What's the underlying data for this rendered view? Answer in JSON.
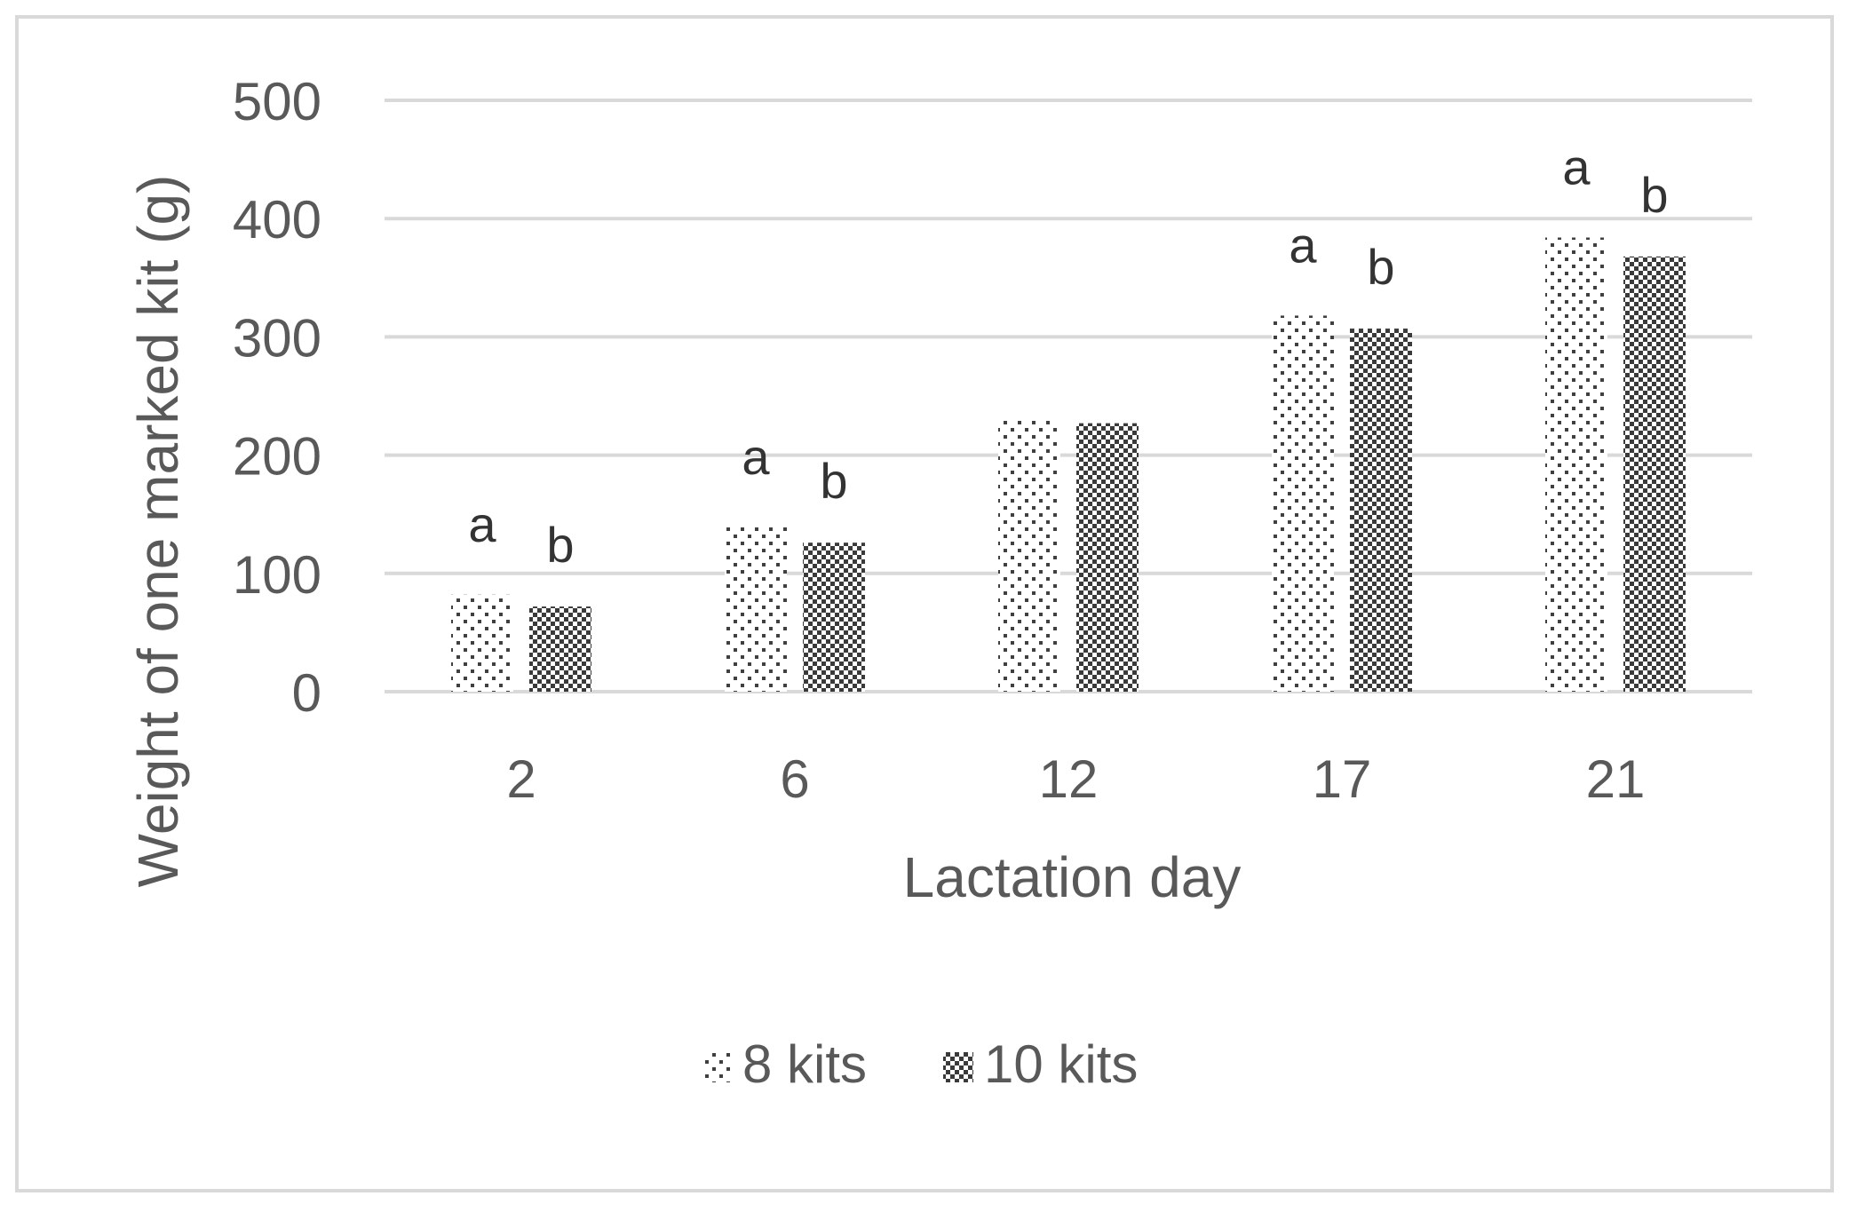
{
  "chart_data": {
    "type": "bar",
    "title": "",
    "xlabel": "Lactation day",
    "ylabel": "Weight of one marked kit (g)",
    "categories": [
      "2",
      "6",
      "12",
      "17",
      "21"
    ],
    "ylim": [
      0,
      500
    ],
    "yticks": [
      "0",
      "100",
      "200",
      "300",
      "400",
      "500"
    ],
    "grid": true,
    "legend_position": "bottom",
    "series": [
      {
        "name": "8 kits",
        "values": [
          82,
          139,
          231,
          318,
          384
        ],
        "pattern": "dots",
        "color": "#595959",
        "annotations": [
          "a",
          "a",
          "",
          "a",
          "a"
        ]
      },
      {
        "name": "10 kits",
        "values": [
          72,
          126,
          227,
          307,
          368
        ],
        "pattern": "checker",
        "color": "#595959",
        "annotations": [
          "b",
          "b",
          "",
          "b",
          "b"
        ]
      }
    ]
  }
}
